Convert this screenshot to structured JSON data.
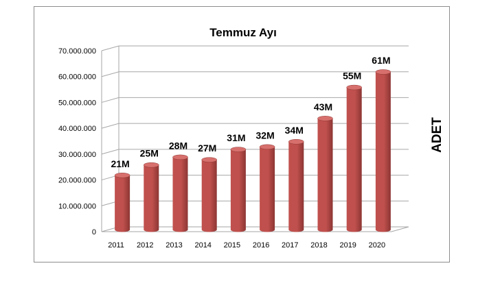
{
  "chart_data": {
    "type": "bar",
    "title": "Temmuz Ayı",
    "xlabel": "",
    "ylabel": "ADET",
    "categories": [
      "2011",
      "2012",
      "2013",
      "2014",
      "2015",
      "2016",
      "2017",
      "2018",
      "2019",
      "2020"
    ],
    "values": [
      21000000,
      25000000,
      28000000,
      27000000,
      31000000,
      32000000,
      34000000,
      43000000,
      55000000,
      61000000
    ],
    "data_labels": [
      "21M",
      "25M",
      "28M",
      "27M",
      "31M",
      "32M",
      "34M",
      "43M",
      "55M",
      "61M"
    ],
    "yticks": [
      "0",
      "10.000.000",
      "20.000.000",
      "30.000.000",
      "40.000.000",
      "50.000.000",
      "60.000.000",
      "70.000.000"
    ],
    "ylim": [
      0,
      70000000
    ],
    "grid": true,
    "legend": "none",
    "style": "3d-cylinder",
    "colors": {
      "bar": "#c0504d",
      "bar_dark": "#8c3634",
      "bar_top": "#d7706d",
      "grid": "#a6a6a6"
    }
  }
}
